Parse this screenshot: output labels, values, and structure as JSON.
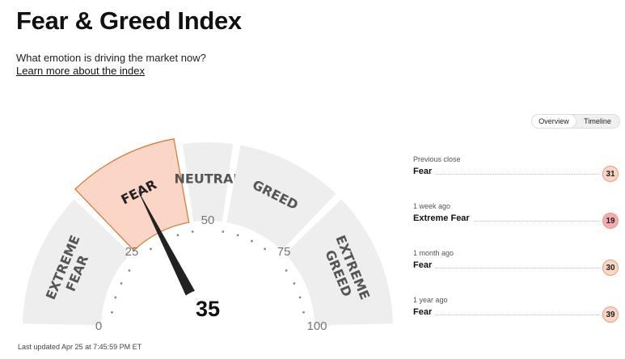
{
  "header": {
    "title": "Fear & Greed Index",
    "subtitle": "What emotion is driving the market now?",
    "learn_more": "Learn more about the index"
  },
  "toggle": {
    "options": [
      "Overview",
      "Timeline"
    ],
    "selected": "Overview"
  },
  "gauge": {
    "value": 35,
    "value_label": "35",
    "min": 0,
    "max": 100,
    "active_segment": "fear",
    "segments": [
      {
        "key": "extreme-fear",
        "lines": [
          "EXTREME",
          "FEAR"
        ],
        "from": 0,
        "to": 25
      },
      {
        "key": "fear",
        "lines": [
          "FEAR"
        ],
        "from": 25,
        "to": 45
      },
      {
        "key": "neutral",
        "lines": [
          "NEUTRAL"
        ],
        "from": 45,
        "to": 55
      },
      {
        "key": "greed",
        "lines": [
          "GREED"
        ],
        "from": 55,
        "to": 75
      },
      {
        "key": "extreme-greed",
        "lines": [
          "EXTREME",
          "GREED"
        ],
        "from": 75,
        "to": 100
      }
    ],
    "scale_labels": [
      {
        "value": 0,
        "text": "0"
      },
      {
        "value": 25,
        "text": "25"
      },
      {
        "value": 50,
        "text": "50"
      },
      {
        "value": 75,
        "text": "75"
      },
      {
        "value": 100,
        "text": "100"
      }
    ],
    "colors": {
      "segment_fill": "#eeeeee",
      "active_fill": "#fbd5c5",
      "active_stroke": "#d2762e",
      "label_color": "#555555",
      "needle": "#222222"
    }
  },
  "history": [
    {
      "label": "Previous close",
      "rating": "Fear",
      "score": "31",
      "badge_color": "#fbd5c5"
    },
    {
      "label": "1 week ago",
      "rating": "Extreme Fear",
      "score": "19",
      "badge_color": "#f5aab1"
    },
    {
      "label": "1 month ago",
      "rating": "Fear",
      "score": "30",
      "badge_color": "#fbd5c5"
    },
    {
      "label": "1 year ago",
      "rating": "Fear",
      "score": "39",
      "badge_color": "#fbd5c5"
    }
  ],
  "footer": {
    "last_updated": "Last updated Apr 25 at 7:45:59 PM ET"
  }
}
